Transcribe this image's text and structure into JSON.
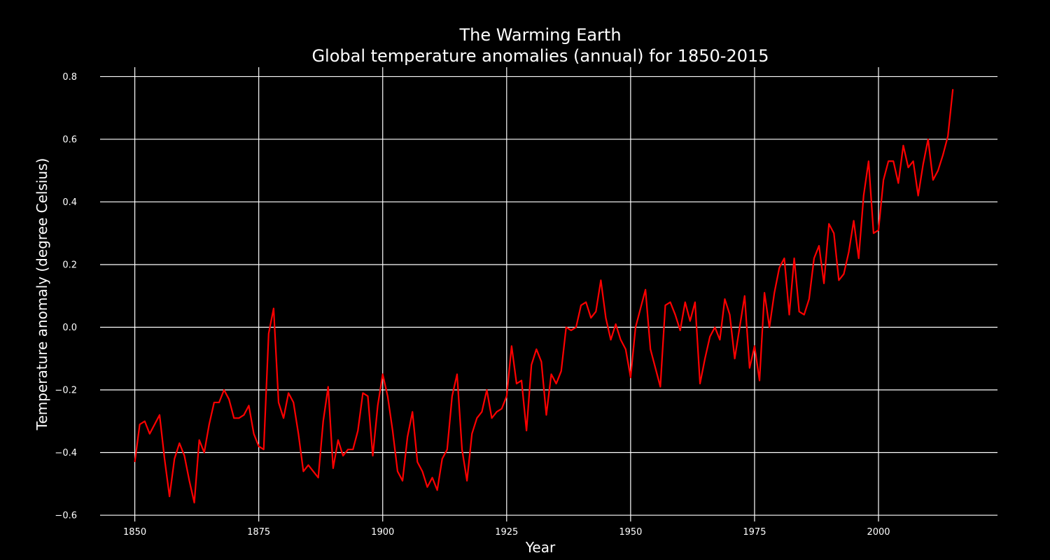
{
  "chart_data": {
    "type": "line",
    "title": "The Warming Earth",
    "subtitle": "Global temperature anomalies (annual) for 1850-2015",
    "xlabel": "Year",
    "ylabel": "Temperature anomaly (degree Celsius)",
    "xlim": [
      1843,
      2024
    ],
    "ylim": [
      -0.62,
      0.83
    ],
    "xticks": [
      1850,
      1875,
      1900,
      1925,
      1950,
      1975,
      2000
    ],
    "yticks": [
      -0.6,
      -0.4,
      -0.2,
      0.0,
      0.2,
      0.4,
      0.6,
      0.8
    ],
    "ytick_labels": [
      "−0.6",
      "−0.4",
      "−0.2",
      "0.0",
      "0.2",
      "0.4",
      "0.6",
      "0.8"
    ],
    "grid": true,
    "background_color": "#000000",
    "grid_color": "#ffffff",
    "text_color": "#ffffff",
    "series": [
      {
        "color": "#ff0000",
        "x_start": 1850,
        "x_step": 1,
        "values": [
          -0.43,
          -0.31,
          -0.3,
          -0.34,
          -0.31,
          -0.28,
          -0.42,
          -0.54,
          -0.42,
          -0.37,
          -0.41,
          -0.49,
          -0.56,
          -0.36,
          -0.4,
          -0.31,
          -0.24,
          -0.24,
          -0.2,
          -0.23,
          -0.29,
          -0.29,
          -0.28,
          -0.25,
          -0.34,
          -0.38,
          -0.39,
          -0.02,
          0.06,
          -0.24,
          -0.29,
          -0.21,
          -0.24,
          -0.34,
          -0.46,
          -0.44,
          -0.46,
          -0.48,
          -0.3,
          -0.19,
          -0.45,
          -0.36,
          -0.41,
          -0.39,
          -0.39,
          -0.33,
          -0.21,
          -0.22,
          -0.41,
          -0.25,
          -0.15,
          -0.22,
          -0.33,
          -0.46,
          -0.49,
          -0.35,
          -0.27,
          -0.43,
          -0.46,
          -0.51,
          -0.48,
          -0.52,
          -0.42,
          -0.39,
          -0.22,
          -0.15,
          -0.39,
          -0.49,
          -0.34,
          -0.29,
          -0.27,
          -0.2,
          -0.29,
          -0.27,
          -0.26,
          -0.22,
          -0.06,
          -0.18,
          -0.17,
          -0.33,
          -0.12,
          -0.07,
          -0.11,
          -0.28,
          -0.15,
          -0.18,
          -0.14,
          0.0,
          -0.01,
          0.0,
          0.07,
          0.08,
          0.03,
          0.05,
          0.15,
          0.03,
          -0.04,
          0.01,
          -0.04,
          -0.07,
          -0.16,
          0.0,
          0.06,
          0.12,
          -0.07,
          -0.13,
          -0.19,
          0.07,
          0.08,
          0.04,
          -0.01,
          0.08,
          0.02,
          0.08,
          -0.18,
          -0.1,
          -0.03,
          0.0,
          -0.04,
          0.09,
          0.04,
          -0.1,
          0.0,
          0.1,
          -0.13,
          -0.06,
          -0.17,
          0.11,
          0.0,
          0.11,
          0.19,
          0.22,
          0.04,
          0.22,
          0.05,
          0.04,
          0.09,
          0.22,
          0.26,
          0.14,
          0.33,
          0.3,
          0.15,
          0.17,
          0.24,
          0.34,
          0.22,
          0.42,
          0.53,
          0.3,
          0.31,
          0.47,
          0.53,
          0.53,
          0.46,
          0.58,
          0.51,
          0.53,
          0.42,
          0.52,
          0.6,
          0.47,
          0.5,
          0.55,
          0.61,
          0.76
        ]
      }
    ]
  }
}
